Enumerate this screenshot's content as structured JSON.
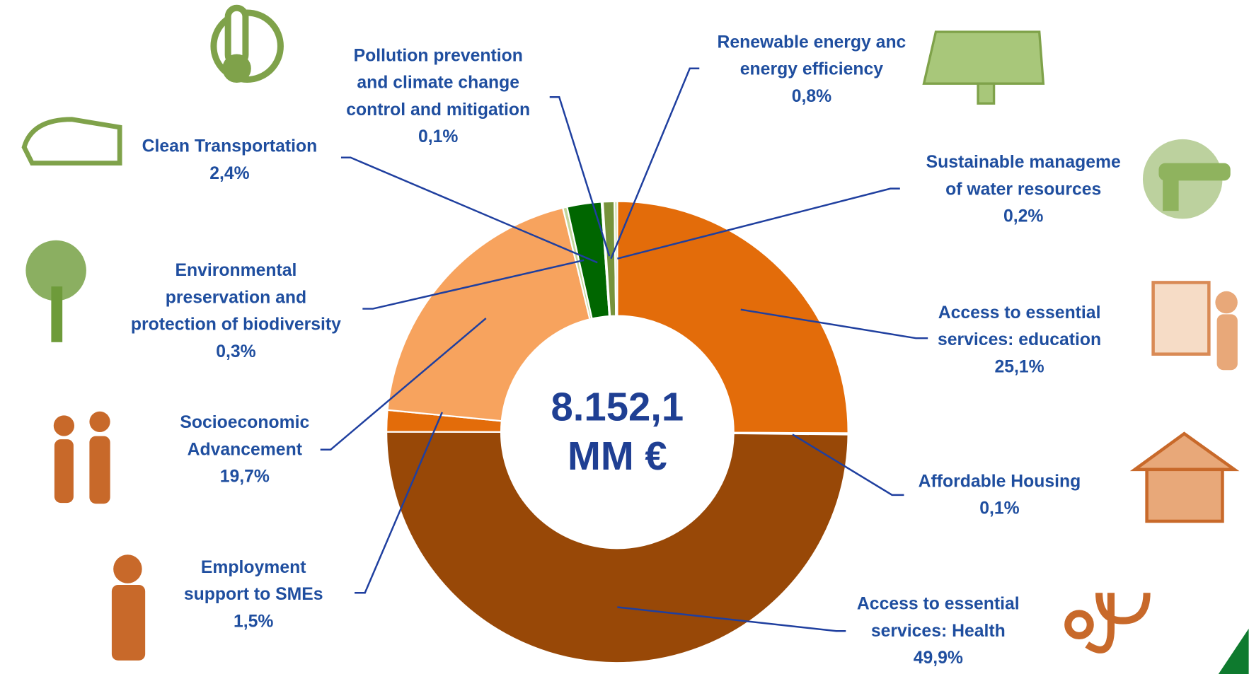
{
  "chart_data": {
    "type": "donut",
    "categories": [
      [
        "Access to essential",
        "services: education"
      ],
      [
        "Affordable Housing"
      ],
      [
        "Access to essential",
        "services: Health"
      ],
      [
        "Employment",
        "support to SMEs"
      ],
      [
        "Socioeconomic",
        "Advancement"
      ],
      [
        "Environmental",
        "preservation and",
        "protection of biodiversity"
      ],
      [
        "Clean Transportation"
      ],
      [
        "Pollution prevention",
        "and climate change",
        "control and mitigation"
      ],
      [
        "Renewable energy anc",
        "energy efficiency"
      ],
      [
        "Sustainable manageme",
        "of water resources"
      ]
    ],
    "values": [
      25.1,
      0.1,
      49.9,
      1.5,
      19.7,
      0.3,
      2.4,
      0.1,
      0.8,
      0.2
    ],
    "value_labels": [
      "25,1%",
      "0,1%",
      "49,9%",
      "1,5%",
      "19,7%",
      "0,3%",
      "2,4%",
      "0,1%",
      "0,8%",
      "0,2%"
    ],
    "colors": [
      "#E36C0A",
      "#E36C0A",
      "#984807",
      "#E36C0A",
      "#F7A35E",
      "#C3D69B",
      "#006600",
      "#9BBB59",
      "#77933C",
      "#C3D69B"
    ],
    "center_text": [
      "8.152,1",
      "MM €"
    ]
  }
}
